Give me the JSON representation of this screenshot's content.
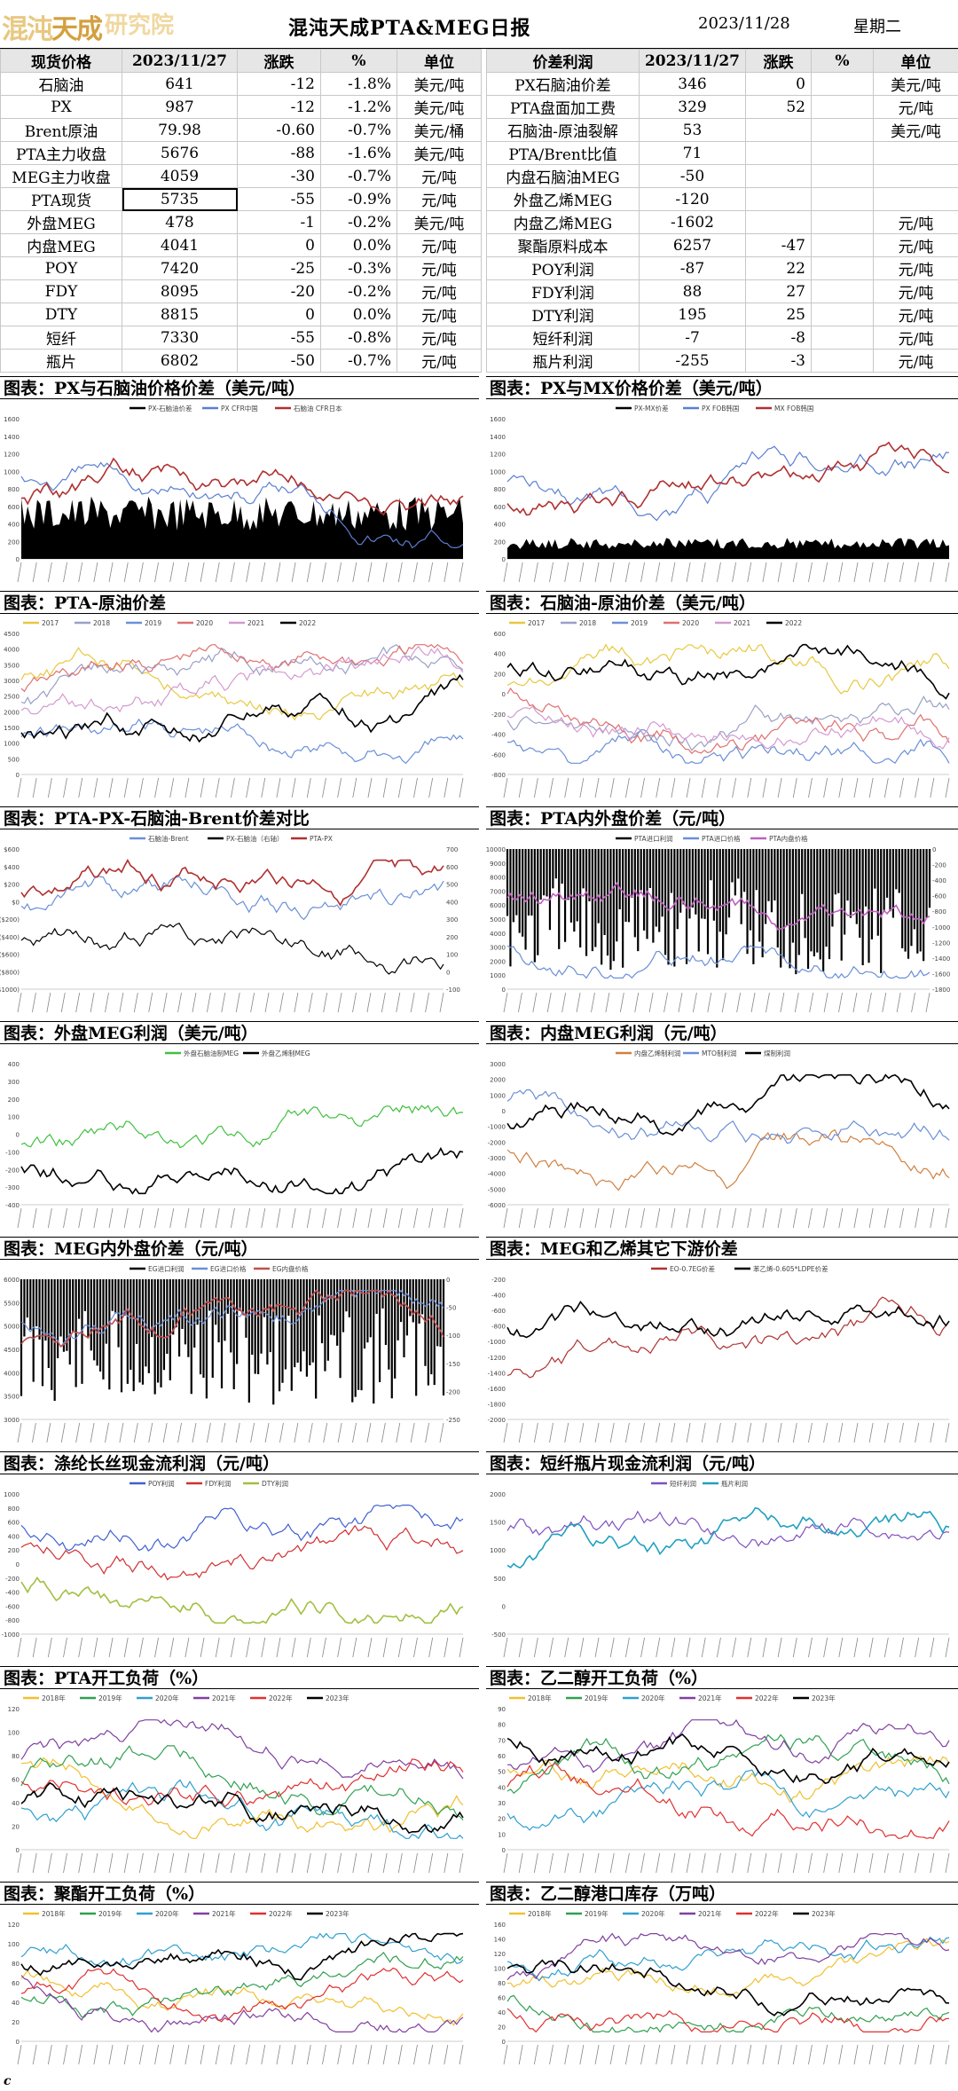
{
  "header": {
    "logo_chars": [
      "混",
      "沌",
      "天",
      "成",
      "研",
      "究",
      "院"
    ],
    "title": "混沌天成PTA&MEG日报",
    "date": "2023/11/28",
    "weekday": "星期二"
  },
  "left_table": {
    "headers": [
      "现货价格",
      "2023/11/27",
      "涨跌",
      "%",
      "单位"
    ],
    "rows": [
      [
        "石脑油",
        "641",
        "-12",
        "-1.8%",
        "美元/吨"
      ],
      [
        "PX",
        "987",
        "-12",
        "-1.2%",
        "美元/吨"
      ],
      [
        "Brent原油",
        "79.98",
        "-0.60",
        "-0.7%",
        "美元/桶"
      ],
      [
        "PTA主力收盘",
        "5676",
        "-88",
        "-1.6%",
        "美元/吨"
      ],
      [
        "MEG主力收盘",
        "4059",
        "-30",
        "-0.7%",
        "元/吨"
      ],
      [
        "PTA现货",
        "5735",
        "-55",
        "-0.9%",
        "元/吨"
      ],
      [
        "外盘MEG",
        "478",
        "-1",
        "-0.2%",
        "美元/吨"
      ],
      [
        "内盘MEG",
        "4041",
        "0",
        "0.0%",
        "元/吨"
      ],
      [
        "POY",
        "7420",
        "-25",
        "-0.3%",
        "元/吨"
      ],
      [
        "FDY",
        "8095",
        "-20",
        "-0.2%",
        "元/吨"
      ],
      [
        "DTY",
        "8815",
        "0",
        "0.0%",
        "元/吨"
      ],
      [
        "短纤",
        "7330",
        "-55",
        "-0.8%",
        "元/吨"
      ],
      [
        "瓶片",
        "6802",
        "-50",
        "-0.7%",
        "元/吨"
      ]
    ]
  },
  "right_table": {
    "headers": [
      "价差利润",
      "2023/11/27",
      "涨跌",
      "%",
      "单位"
    ],
    "rows": [
      [
        "PX石脑油价差",
        "346",
        "0",
        "",
        "美元/吨"
      ],
      [
        "PTA盘面加工费",
        "329",
        "52",
        "",
        "元/吨"
      ],
      [
        "石脑油-原油裂解",
        "53",
        "",
        "",
        "美元/吨"
      ],
      [
        "PTA/Brent比值",
        "71",
        "",
        "",
        ""
      ],
      [
        "内盘石脑油MEG",
        "-50",
        "",
        "",
        ""
      ],
      [
        "外盘乙烯MEG",
        "-120",
        "",
        "",
        ""
      ],
      [
        "内盘乙烯MEG",
        "-1602",
        "",
        "",
        "元/吨"
      ],
      [
        "聚酯原料成本",
        "6257",
        "-47",
        "",
        "元/吨"
      ],
      [
        "POY利润",
        "-87",
        "22",
        "",
        "元/吨"
      ],
      [
        "FDY利润",
        "88",
        "27",
        "",
        "元/吨"
      ],
      [
        "DTY利润",
        "195",
        "25",
        "",
        "元/吨"
      ],
      [
        "短纤利润",
        "-7",
        "-8",
        "",
        "元/吨"
      ],
      [
        "瓶片利润",
        "-255",
        "-3",
        "",
        "元/吨"
      ]
    ]
  },
  "charts": [
    {
      "caption": "图表：PX与石脑油价格价差（美元/吨）",
      "legend": [
        "PX-石脑油价差",
        "PX CFR中国",
        "石脑油 CFR日本"
      ],
      "yticks": [
        "1600",
        "1400",
        "1200",
        "1000",
        "800",
        "600",
        "400",
        "200",
        "0"
      ],
      "colors": [
        "#000000",
        "#5b7fd0",
        "#b03030"
      ]
    },
    {
      "caption": "图表：PX与MX价格价差（美元/吨）",
      "legend": [
        "PX-MX价差",
        "PX FOB韩国",
        "MX FOB韩国"
      ],
      "yticks": [
        "1600",
        "1400",
        "1200",
        "1000",
        "800",
        "600",
        "400",
        "200",
        "0"
      ],
      "colors": [
        "#000000",
        "#5b7fd0",
        "#b03030"
      ]
    },
    {
      "caption": "图表：PTA-原油价差",
      "legend": [
        "2017",
        "2018",
        "2019",
        "2020",
        "2021",
        "2022"
      ],
      "yticks": [
        "4500",
        "4000",
        "3500",
        "3000",
        "2500",
        "2000",
        "1500",
        "1000",
        "500",
        "0"
      ],
      "colors": [
        "#e8c840",
        "#9aa0c8",
        "#6a8fd8",
        "#e07070",
        "#d49ad0",
        "#000000"
      ]
    },
    {
      "caption": "图表：石脑油-原油价差（美元/吨）",
      "legend": [
        "2017",
        "2018",
        "2019",
        "2020",
        "2021",
        "2022"
      ],
      "yticks": [
        "600",
        "400",
        "200",
        "0",
        "-200",
        "-400",
        "-600",
        "-800"
      ],
      "colors": [
        "#e8c840",
        "#9aa0c8",
        "#6a8fd8",
        "#e07070",
        "#d49ad0",
        "#000000"
      ]
    },
    {
      "caption": "图表：PTA-PX-石脑油-Brent价差对比",
      "legend": [
        "石脑油-Brent",
        "PX-石脑油（右轴）",
        "PTA-PX"
      ],
      "yticks": [
        "$600",
        "$400",
        "$200",
        "$0",
        "($200)",
        "($400)",
        "($600)",
        "($800)",
        "($1000)"
      ],
      "yticks_right": [
        "700",
        "600",
        "500",
        "400",
        "300",
        "200",
        "100",
        "0",
        "-100"
      ],
      "colors": [
        "#6a8fd8",
        "#000000",
        "#b03030"
      ]
    },
    {
      "caption": "图表：PTA内外盘价差（元/吨）",
      "legend": [
        "PTA进口利润",
        "PTA进口价格",
        "PTA内盘价格"
      ],
      "yticks": [
        "10000",
        "9000",
        "8000",
        "7000",
        "6000",
        "5000",
        "4000",
        "3000",
        "2000",
        "1000",
        "0"
      ],
      "yticks_right": [
        "0",
        "-200",
        "-400",
        "-600",
        "-800",
        "-1000",
        "-1200",
        "-1400",
        "-1600",
        "-1800"
      ],
      "colors": [
        "#000000",
        "#6a8fd8",
        "#c060c0"
      ]
    },
    {
      "caption": "图表：外盘MEG利润（美元/吨）",
      "legend": [
        "外盘石脑油制MEG",
        "外盘乙烯制MEG"
      ],
      "yticks": [
        "400",
        "300",
        "200",
        "100",
        "0",
        "-100",
        "-200",
        "-300",
        "-400"
      ],
      "colors": [
        "#40c040",
        "#000000"
      ]
    },
    {
      "caption": "图表：内盘MEG利润（元/吨）",
      "legend": [
        "内盘乙烯制利润",
        "MTO制利润",
        "煤制利润"
      ],
      "yticks": [
        "3000",
        "2000",
        "1000",
        "0",
        "-1000",
        "-2000",
        "-3000",
        "-4000",
        "-5000",
        "-6000"
      ],
      "colors": [
        "#d08040",
        "#6a8fd8",
        "#000000"
      ]
    },
    {
      "caption": "图表：MEG内外盘价差（元/吨）",
      "legend": [
        "EG进口利润",
        "EG进口价格",
        "EG内盘价格"
      ],
      "yticks": [
        "6000",
        "5500",
        "5000",
        "4500",
        "4000",
        "3500",
        "3000"
      ],
      "yticks_right": [
        "0",
        "-50",
        "-100",
        "-150",
        "-200",
        "-250"
      ],
      "colors": [
        "#000000",
        "#6a8fd8",
        "#c05050"
      ]
    },
    {
      "caption": "图表：MEG和乙烯其它下游价差",
      "legend": [
        "EO-0.7EG价差",
        "苯乙烯-0.605*LDPE价差"
      ],
      "yticks": [
        "-200",
        "-400",
        "-600",
        "-800",
        "-1000",
        "-1200",
        "-1400",
        "-1600",
        "-1800",
        "-2000"
      ],
      "colors": [
        "#b03030",
        "#000000"
      ]
    },
    {
      "caption": "图表：涤纶长丝现金流利润（元/吨）",
      "legend": [
        "POY利润",
        "FDY利润",
        "DTY利润"
      ],
      "yticks": [
        "1000",
        "800",
        "600",
        "400",
        "200",
        "0",
        "-200",
        "-400",
        "-600",
        "-800",
        "-1000"
      ],
      "colors": [
        "#4060d0",
        "#d03030",
        "#a0c040"
      ]
    },
    {
      "caption": "图表：短纤瓶片现金流利润（元/吨）",
      "legend": [
        "短纤利润",
        "瓶片利润"
      ],
      "yticks": [
        "2000",
        "1500",
        "1000",
        "500",
        "0",
        "-500"
      ],
      "colors": [
        "#8050c0",
        "#20a0c0"
      ]
    },
    {
      "caption": "图表：PTA开工负荷（%）",
      "legend": [
        "2018年",
        "2019年",
        "2020年",
        "2021年",
        "2022年",
        "2023年"
      ],
      "yticks": [
        "120",
        "100",
        "80",
        "60",
        "40",
        "20",
        "0"
      ],
      "colors": [
        "#f0c030",
        "#30a050",
        "#30a0d0",
        "#8040a0",
        "#e03030",
        "#000000"
      ]
    },
    {
      "caption": "图表：乙二醇开工负荷（%）",
      "legend": [
        "2018年",
        "2019年",
        "2020年",
        "2021年",
        "2022年",
        "2023年"
      ],
      "yticks": [
        "90",
        "80",
        "70",
        "60",
        "50",
        "40",
        "30",
        "20",
        "10",
        "0"
      ],
      "colors": [
        "#f0c030",
        "#30a050",
        "#30a0d0",
        "#8040a0",
        "#e03030",
        "#000000"
      ]
    },
    {
      "caption": "图表：聚酯开工负荷（%）",
      "legend": [
        "2018年",
        "2019年",
        "2020年",
        "2021年",
        "2022年",
        "2023年"
      ],
      "yticks": [
        "120",
        "100",
        "80",
        "60",
        "40",
        "20",
        "0"
      ],
      "colors": [
        "#f0c030",
        "#30a050",
        "#30a0d0",
        "#8040a0",
        "#e03030",
        "#000000"
      ]
    },
    {
      "caption": "图表：乙二醇港口库存（万吨）",
      "legend": [
        "2018年",
        "2019年",
        "2020年",
        "2021年",
        "2022年",
        "2023年"
      ],
      "yticks": [
        "160",
        "140",
        "120",
        "100",
        "80",
        "60",
        "40",
        "20",
        "0"
      ],
      "colors": [
        "#f0c030",
        "#30a050",
        "#30a0d0",
        "#8040a0",
        "#e03030",
        "#000000"
      ]
    }
  ],
  "footer": {
    "mark": "c"
  }
}
